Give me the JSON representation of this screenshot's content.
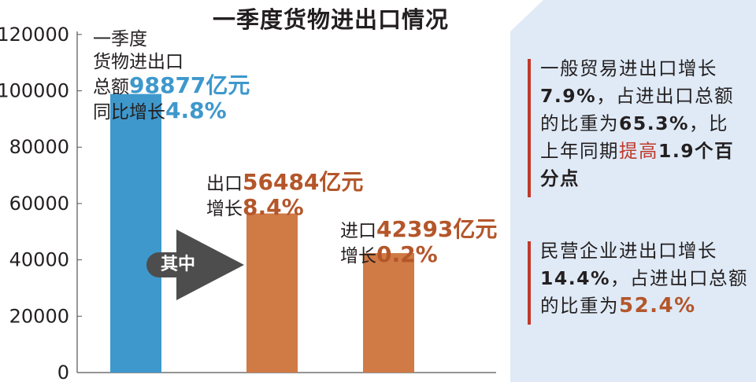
{
  "chart_data": {
    "type": "bar",
    "title": "一季度货物进出口情况",
    "categories": [
      "一季度货物进出口总额",
      "出口",
      "进口"
    ],
    "values": [
      98877,
      56484,
      42393
    ],
    "unit": "亿元",
    "yticks": [
      "0",
      "20000",
      "40000",
      "60000",
      "80000",
      "100000",
      "120000"
    ],
    "ytick_values": [
      0,
      20000,
      40000,
      60000,
      80000,
      100000,
      120000
    ],
    "ylim": [
      0,
      130000
    ],
    "grid": false,
    "bar_colors": [
      "#3e98cc",
      "#d07a45",
      "#d07a45"
    ]
  },
  "annotations": {
    "total": {
      "line1": "一季度",
      "line2": "货物进出口",
      "line3_prefix": "总额",
      "line3_value": "98877亿元",
      "line4_prefix": "同比增长",
      "line4_value": "4.8%"
    },
    "export": {
      "line1_prefix": "出口",
      "line1_value": "56484亿元",
      "line2_prefix": "增长",
      "line2_value": "8.4%"
    },
    "import": {
      "line1_prefix": "进口",
      "line1_value": "42393亿元",
      "line2_prefix": "增长",
      "line2_value": "0.2%"
    },
    "arrow_label": "其中"
  },
  "panel": {
    "block1": {
      "l1": "一般贸易进出口增长",
      "l2_value": "7.9%",
      "l2_text": "，占进出口总额",
      "l3_text": "的比重为",
      "l3_value": "65.3%",
      "l3_tail": "，比",
      "l4_text": "上年同期",
      "l4_red": "提高",
      "l4_value": "1.9个百",
      "l5_value": "分点"
    },
    "block2": {
      "l1": "民营企业进出口增长",
      "l2_value": "14.4%",
      "l2_text": "，占进出口总额",
      "l3_text": "的比重为",
      "l3_value": "52.4%"
    }
  },
  "colors": {
    "panel_bg": "#dfeaf6",
    "accent_red": "#c0392b",
    "arrow_gray": "#4d4d4d"
  }
}
